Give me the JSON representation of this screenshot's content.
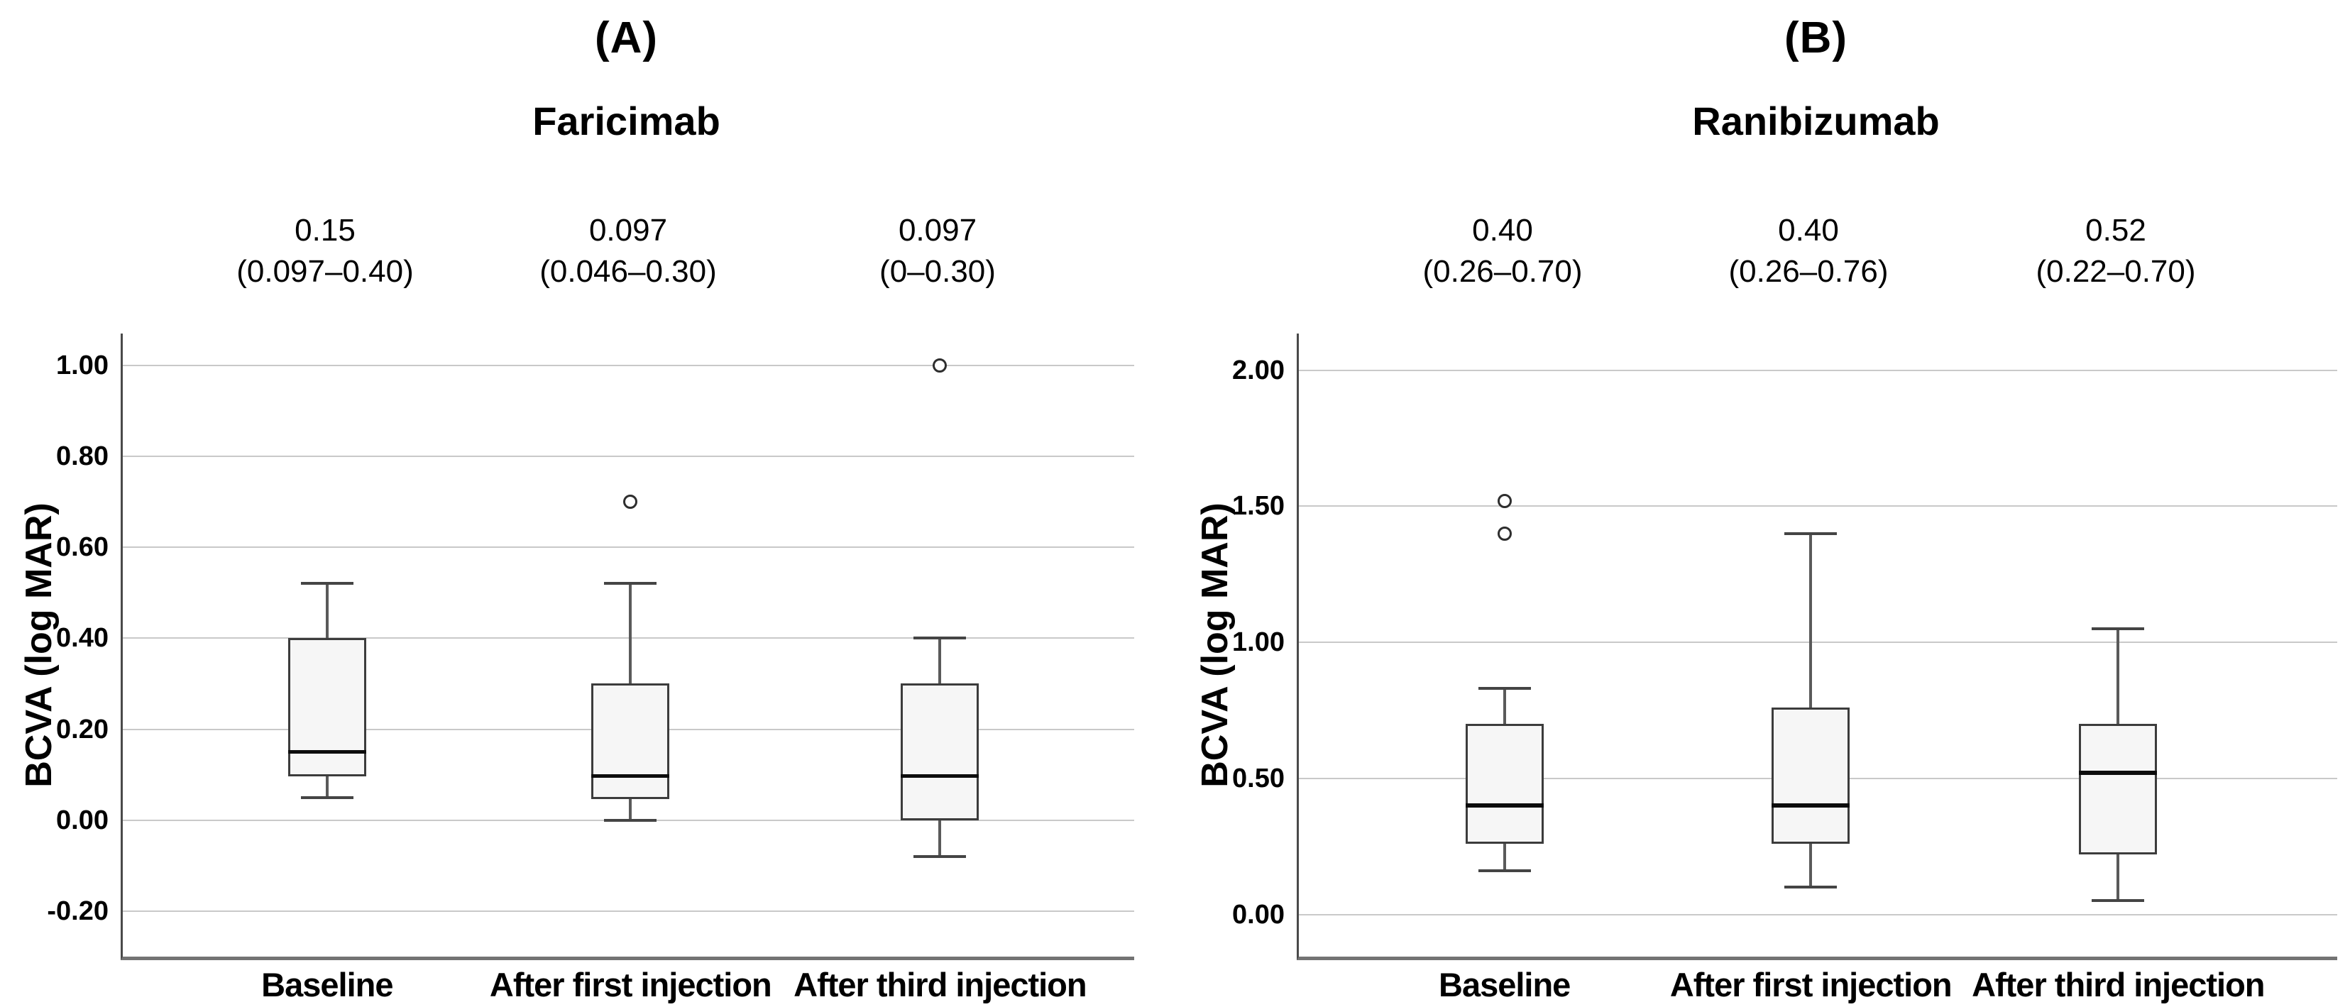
{
  "figure": {
    "background": "#ffffff",
    "text_color": "#000000"
  },
  "styles": {
    "box_fill": "#f6f6f6",
    "box_border": "#3c3c3c",
    "whisker_color": "#5a5a5a",
    "median_color": "#0d0d0d",
    "gridline_color": "#c9c9c9",
    "y_axis_color": "#4a4a4a",
    "x_axis_color": "#737373"
  },
  "chart_data": [
    {
      "type": "boxplot",
      "panel_label": "(A)",
      "title": "Faricimab",
      "ylabel": "BCVA (log MAR)",
      "ylim": [
        -0.3,
        1.07
      ],
      "grid": true,
      "categories": [
        "Baseline",
        "After first injection",
        "After third injection"
      ],
      "yticks": [
        {
          "value": 1.0,
          "label": "1.00"
        },
        {
          "value": 0.8,
          "label": "0.80"
        },
        {
          "value": 0.6,
          "label": "0.60"
        },
        {
          "value": 0.4,
          "label": "0.40"
        },
        {
          "value": 0.2,
          "label": "0.20"
        },
        {
          "value": 0.0,
          "label": "0.00"
        },
        {
          "value": -0.2,
          "label": "-0.20"
        }
      ],
      "annotations": [
        {
          "median": "0.15",
          "range": "(0.097–0.40)"
        },
        {
          "median": "0.097",
          "range": "(0.046–0.30)"
        },
        {
          "median": "0.097",
          "range": "(0–0.30)"
        }
      ],
      "boxes": [
        {
          "category": "Baseline",
          "whisker_low": 0.05,
          "q1": 0.097,
          "median": 0.15,
          "q3": 0.4,
          "whisker_high": 0.52,
          "outliers": []
        },
        {
          "category": "After first injection",
          "whisker_low": 0.0,
          "q1": 0.046,
          "median": 0.097,
          "q3": 0.3,
          "whisker_high": 0.52,
          "outliers": [
            0.7
          ]
        },
        {
          "category": "After third injection",
          "whisker_low": -0.08,
          "q1": 0.0,
          "median": 0.097,
          "q3": 0.3,
          "whisker_high": 0.4,
          "outliers": [
            1.0
          ]
        }
      ]
    },
    {
      "type": "boxplot",
      "panel_label": "(B)",
      "title": "Ranibizumab",
      "ylabel": "BCVA (log MAR)",
      "ylim": [
        -0.155,
        2.135
      ],
      "grid": true,
      "categories": [
        "Baseline",
        "After first injection",
        "After third injection"
      ],
      "yticks": [
        {
          "value": 2.0,
          "label": "2.00"
        },
        {
          "value": 1.5,
          "label": "1.50"
        },
        {
          "value": 1.0,
          "label": "1.00"
        },
        {
          "value": 0.5,
          "label": "0.50"
        },
        {
          "value": 0.0,
          "label": "0.00"
        }
      ],
      "annotations": [
        {
          "median": "0.40",
          "range": "(0.26–0.70)"
        },
        {
          "median": "0.40",
          "range": "(0.26–0.76)"
        },
        {
          "median": "0.52",
          "range": "(0.22–0.70)"
        }
      ],
      "boxes": [
        {
          "category": "Baseline",
          "whisker_low": 0.16,
          "q1": 0.26,
          "median": 0.4,
          "q3": 0.7,
          "whisker_high": 0.83,
          "outliers": [
            1.4,
            1.52
          ]
        },
        {
          "category": "After first injection",
          "whisker_low": 0.1,
          "q1": 0.26,
          "median": 0.4,
          "q3": 0.76,
          "whisker_high": 1.4,
          "outliers": []
        },
        {
          "category": "After third injection",
          "whisker_low": 0.05,
          "q1": 0.22,
          "median": 0.52,
          "q3": 0.7,
          "whisker_high": 1.05,
          "outliers": []
        }
      ]
    }
  ]
}
